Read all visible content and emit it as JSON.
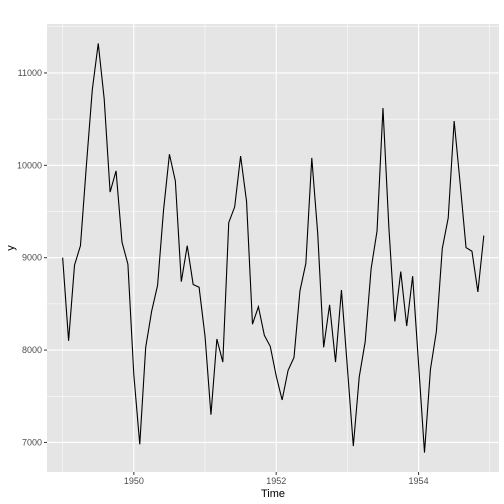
{
  "chart_data": {
    "type": "line",
    "xlabel": "Time",
    "ylabel": "y",
    "xlim": [
      1948.78,
      1955.13
    ],
    "ylim": [
      6680,
      11530
    ],
    "x_ticks": [
      1950,
      1952,
      1954
    ],
    "y_ticks": [
      7000,
      8000,
      9000,
      10000,
      11000
    ],
    "x_tick_labels": [
      "1950",
      "1952",
      "1954"
    ],
    "y_tick_labels": [
      "7000",
      "8000",
      "9000",
      "10000",
      "11000"
    ],
    "grid": true,
    "background": "#e5e5e5",
    "gridline_color": "#ffffff",
    "line_color": "#000000",
    "start": 1949.0,
    "frequency": 12,
    "values": [
      9000,
      8100,
      8920,
      9130,
      10000,
      10820,
      11320,
      10720,
      9710,
      9940,
      9170,
      8930,
      7730,
      6980,
      8030,
      8420,
      8700,
      9510,
      10120,
      9830,
      8740,
      9130,
      8710,
      8680,
      8150,
      7300,
      8120,
      7870,
      9380,
      9550,
      10100,
      9610,
      8280,
      8470,
      8160,
      8040,
      7720,
      7460,
      7780,
      7920,
      8640,
      8940,
      10080,
      9260,
      8030,
      8490,
      7870,
      8650,
      7810,
      6960,
      7710,
      8090,
      8880,
      9290,
      10620,
      9320,
      8310,
      8850,
      8260,
      8800,
      7850,
      6890,
      7790,
      8200,
      9100,
      9430,
      10480,
      9810,
      9110,
      9070,
      8630,
      9240
    ]
  }
}
